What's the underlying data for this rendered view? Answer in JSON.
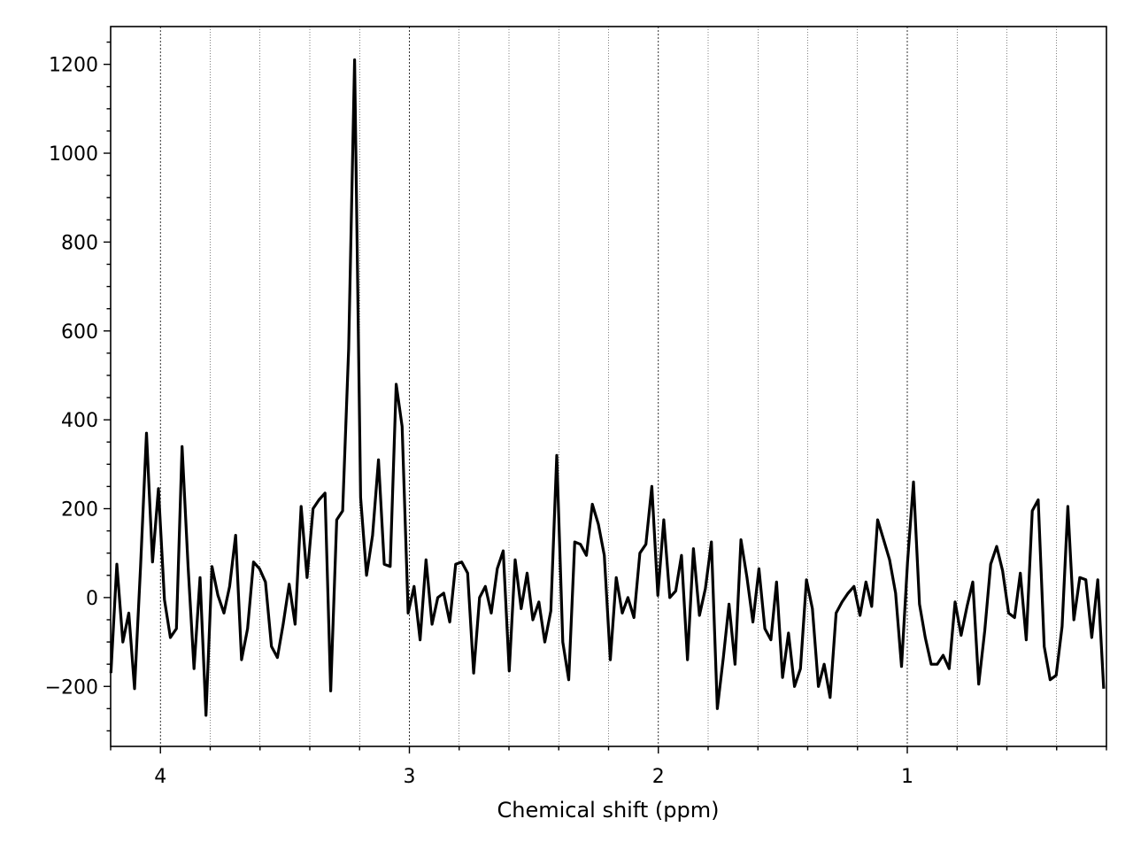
{
  "chart_data": {
    "type": "line",
    "title": "",
    "xlabel": "Chemical shift (ppm)",
    "ylabel": "",
    "xlim": [
      4.2,
      0.2
    ],
    "ylim": [
      -335,
      1285
    ],
    "x_inverted": true,
    "grid": "vertical dotted",
    "legend": "none",
    "x_ticks": [
      4,
      3,
      2,
      1
    ],
    "x_tick_labels": [
      "4",
      "3",
      "2",
      "1"
    ],
    "y_ticks": [
      -200,
      0,
      200,
      400,
      600,
      800,
      1000,
      1200
    ],
    "y_tick_labels": [
      "−200",
      "0",
      "200",
      "400",
      "600",
      "800",
      "1000",
      "1200"
    ],
    "line_color": "#000000",
    "series": [
      {
        "x": [
          4.199,
          4.175,
          4.151,
          4.127,
          4.104,
          4.08,
          4.056,
          4.032,
          4.008,
          3.984,
          3.96,
          3.936,
          3.913,
          3.889,
          3.865,
          3.841,
          3.817,
          3.793,
          3.769,
          3.745,
          3.722,
          3.698,
          3.674,
          3.65,
          3.626,
          3.602,
          3.578,
          3.554,
          3.53,
          3.507,
          3.483,
          3.459,
          3.435,
          3.411,
          3.387,
          3.363,
          3.339,
          3.316,
          3.292,
          3.268,
          3.244,
          3.22,
          3.196,
          3.172,
          3.148,
          3.124,
          3.101,
          3.077,
          3.053,
          3.029,
          3.005,
          2.981,
          2.957,
          2.933,
          2.909,
          2.886,
          2.862,
          2.838,
          2.814,
          2.79,
          2.766,
          2.742,
          2.718,
          2.695,
          2.671,
          2.647,
          2.623,
          2.599,
          2.575,
          2.551,
          2.527,
          2.504,
          2.48,
          2.456,
          2.432,
          2.408,
          2.384,
          2.36,
          2.336,
          2.313,
          2.289,
          2.265,
          2.241,
          2.217,
          2.193,
          2.169,
          2.145,
          2.122,
          2.098,
          2.074,
          2.05,
          2.026,
          2.002,
          1.978,
          1.954,
          1.93,
          1.907,
          1.883,
          1.859,
          1.835,
          1.811,
          1.787,
          1.763,
          1.739,
          1.716,
          1.692,
          1.668,
          1.644,
          1.62,
          1.596,
          1.572,
          1.548,
          1.525,
          1.501,
          1.477,
          1.453,
          1.429,
          1.405,
          1.381,
          1.357,
          1.334,
          1.31,
          1.286,
          1.262,
          1.238,
          1.214,
          1.19,
          1.166,
          1.143,
          1.119,
          1.095,
          1.071,
          1.047,
          1.023,
          0.999,
          0.975,
          0.951,
          0.928,
          0.904,
          0.88,
          0.856,
          0.832,
          0.808,
          0.784,
          0.76,
          0.737,
          0.713,
          0.689,
          0.665,
          0.641,
          0.617,
          0.593,
          0.569,
          0.546,
          0.522,
          0.498,
          0.474,
          0.45,
          0.426,
          0.402,
          0.378,
          0.355,
          0.331,
          0.307,
          0.283,
          0.259,
          0.235,
          0.211
        ],
        "y": [
          -170,
          75,
          -100,
          -35,
          -205,
          70,
          370,
          80,
          245,
          -5,
          -90,
          -70,
          340,
          70,
          -160,
          45,
          -265,
          70,
          5,
          -35,
          25,
          140,
          -140,
          -70,
          80,
          65,
          35,
          -110,
          -135,
          -60,
          30,
          -60,
          205,
          45,
          200,
          220,
          235,
          -210,
          175,
          195,
          560,
          1210,
          225,
          50,
          140,
          310,
          75,
          70,
          480,
          385,
          -35,
          25,
          -95,
          85,
          -60,
          0,
          10,
          -55,
          75,
          80,
          55,
          -170,
          0,
          25,
          -35,
          65,
          105,
          -165,
          85,
          -25,
          55,
          -50,
          -10,
          -100,
          -30,
          320,
          -100,
          -185,
          125,
          120,
          95,
          210,
          165,
          95,
          -140,
          45,
          -35,
          0,
          -45,
          100,
          120,
          250,
          5,
          175,
          0,
          15,
          95,
          -140,
          110,
          -40,
          20,
          125,
          -250,
          -135,
          -15,
          -150,
          130,
          45,
          -55,
          65,
          -70,
          -95,
          35,
          -180,
          -80,
          -200,
          -160,
          40,
          -25,
          -200,
          -150,
          -225,
          -35,
          -10,
          10,
          25,
          -40,
          35,
          -20,
          175,
          130,
          85,
          10,
          -155,
          80,
          260,
          -15,
          -90,
          -150,
          -150,
          -130,
          -160,
          -10,
          -85,
          -20,
          35,
          -195,
          -75,
          75,
          115,
          60,
          -35,
          -45,
          55,
          -95,
          195,
          220,
          -110,
          -185,
          -175,
          -65,
          205,
          -50,
          45,
          40,
          -90,
          40,
          -205
        ]
      }
    ]
  }
}
